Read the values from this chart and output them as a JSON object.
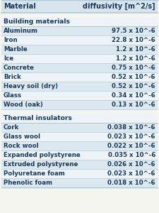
{
  "title_col1": "Material",
  "title_col2": "diffusivity [m^2/s]",
  "section1_header": "Building materials",
  "section1_rows": [
    [
      "Aluminum",
      "97.5 x 10^-6"
    ],
    [
      "Iron",
      "22.8 x 10^-6"
    ],
    [
      "Marble",
      "  1.2 x 10^-6"
    ],
    [
      "Ice",
      "  1.2 x 10^-6"
    ],
    [
      "Concrete",
      "0.75 x 10^-6"
    ],
    [
      "Brick",
      "0.52 x 10^-6"
    ],
    [
      "Heavy soil (dry)",
      "0.52 x 10^-6"
    ],
    [
      "Glass",
      "0.34 x 10^-6"
    ],
    [
      "Wood (oak)",
      "0.13 x 10^-6"
    ]
  ],
  "section2_header": "Thermal insulators",
  "section2_rows": [
    [
      "Cork",
      "0.038 x 10^-6"
    ],
    [
      "Glass wool",
      "0.023 x 10^-6"
    ],
    [
      "Rock wool",
      "0.022 x 10^-6"
    ],
    [
      "Expanded polystyrene",
      "0.035 x 10^-6"
    ],
    [
      "Extruded polystyrene",
      "0.026 x 10^-6"
    ],
    [
      "Polyuretane foam",
      "0.023 x 10^-6"
    ],
    [
      "Phenolic foam",
      "0.018 x 10^-6"
    ]
  ],
  "bg_color": "#f5f5f0",
  "header_bg": "#d8e4ec",
  "row_bg_light": "#edf3f7",
  "row_bg_dark": "#dce8f0",
  "section_header_bg": "#edf3f7",
  "divider_color": "#b0c8d8",
  "text_color": "#1a3a5c",
  "font_size": 6.2,
  "header_font_size": 7.0,
  "section_font_size": 6.6
}
